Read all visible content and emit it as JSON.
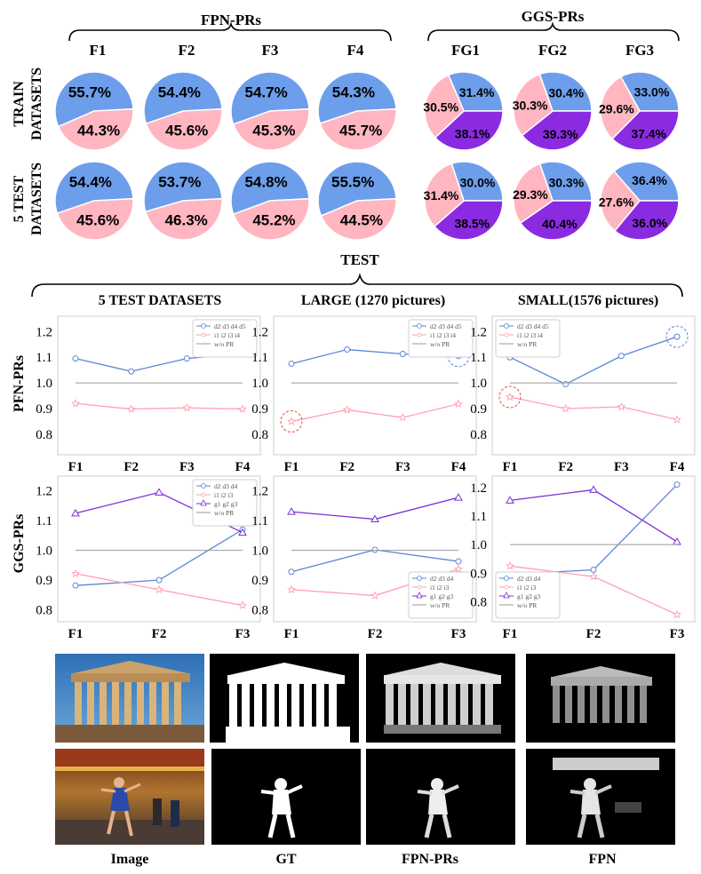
{
  "colors": {
    "blue": "#6d9eeb",
    "pink": "#ffb6c1",
    "purple": "#8a2be2",
    "line_blue": "#5a86d6",
    "line_pink": "#ff9fb0",
    "line_purple": "#7b2fd6",
    "gray": "#999999",
    "highlight": "#e74c3c"
  },
  "top": {
    "fpn_header": "FPN-PRs",
    "ggs_header": "GGS-PRs",
    "fpn_cols": [
      "F1",
      "F2",
      "F3",
      "F4"
    ],
    "ggs_cols": [
      "FG1",
      "FG2",
      "FG3"
    ],
    "row_labels": [
      {
        "line1": "TRAIN",
        "line2": "DATASETS"
      },
      {
        "line1": "5 TEST",
        "line2": "DATASETS"
      }
    ]
  },
  "middle": {
    "test_header": "TEST",
    "col_titles": [
      "5 TEST DATASETS",
      "LARGE (1270 pictures)",
      "SMALL(1576 pictures)"
    ],
    "row_labels": [
      "PFN-PRs",
      "GGS-PRs"
    ]
  },
  "chart_data": [
    {
      "type": "pie",
      "group": "FPN-PRs",
      "row": "TRAIN DATASETS",
      "name": "F1",
      "slices": [
        {
          "label": "55.7%",
          "value": 55.7,
          "color": "blue"
        },
        {
          "label": "44.3%",
          "value": 44.3,
          "color": "pink"
        }
      ]
    },
    {
      "type": "pie",
      "group": "FPN-PRs",
      "row": "TRAIN DATASETS",
      "name": "F2",
      "slices": [
        {
          "label": "54.4%",
          "value": 54.4,
          "color": "blue"
        },
        {
          "label": "45.6%",
          "value": 45.6,
          "color": "pink"
        }
      ]
    },
    {
      "type": "pie",
      "group": "FPN-PRs",
      "row": "TRAIN DATASETS",
      "name": "F3",
      "slices": [
        {
          "label": "54.7%",
          "value": 54.7,
          "color": "blue"
        },
        {
          "label": "45.3%",
          "value": 45.3,
          "color": "pink"
        }
      ]
    },
    {
      "type": "pie",
      "group": "FPN-PRs",
      "row": "TRAIN DATASETS",
      "name": "F4",
      "slices": [
        {
          "label": "54.3%",
          "value": 54.3,
          "color": "blue"
        },
        {
          "label": "45.7%",
          "value": 45.7,
          "color": "pink"
        }
      ]
    },
    {
      "type": "pie",
      "group": "GGS-PRs",
      "row": "TRAIN DATASETS",
      "name": "FG1",
      "slices": [
        {
          "label": "31.4%",
          "value": 31.4,
          "color": "blue"
        },
        {
          "label": "38.1%",
          "value": 38.1,
          "color": "purple"
        },
        {
          "label": "30.5%",
          "value": 30.5,
          "color": "pink"
        }
      ]
    },
    {
      "type": "pie",
      "group": "GGS-PRs",
      "row": "TRAIN DATASETS",
      "name": "FG2",
      "slices": [
        {
          "label": "30.4%",
          "value": 30.4,
          "color": "blue"
        },
        {
          "label": "39.3%",
          "value": 39.3,
          "color": "purple"
        },
        {
          "label": "30.3%",
          "value": 30.3,
          "color": "pink"
        }
      ]
    },
    {
      "type": "pie",
      "group": "GGS-PRs",
      "row": "TRAIN DATASETS",
      "name": "FG3",
      "slices": [
        {
          "label": "33.0%",
          "value": 33.0,
          "color": "blue"
        },
        {
          "label": "37.4%",
          "value": 37.4,
          "color": "purple"
        },
        {
          "label": "29.6%",
          "value": 29.6,
          "color": "pink"
        }
      ]
    },
    {
      "type": "pie",
      "group": "FPN-PRs",
      "row": "5 TEST DATASETS",
      "name": "F1",
      "slices": [
        {
          "label": "54.4%",
          "value": 54.4,
          "color": "blue"
        },
        {
          "label": "45.6%",
          "value": 45.6,
          "color": "pink"
        }
      ]
    },
    {
      "type": "pie",
      "group": "FPN-PRs",
      "row": "5 TEST DATASETS",
      "name": "F2",
      "slices": [
        {
          "label": "53.7%",
          "value": 53.7,
          "color": "blue"
        },
        {
          "label": "46.3%",
          "value": 46.3,
          "color": "pink"
        }
      ]
    },
    {
      "type": "pie",
      "group": "FPN-PRs",
      "row": "5 TEST DATASETS",
      "name": "F3",
      "slices": [
        {
          "label": "54.8%",
          "value": 54.8,
          "color": "blue"
        },
        {
          "label": "45.2%",
          "value": 45.2,
          "color": "pink"
        }
      ]
    },
    {
      "type": "pie",
      "group": "FPN-PRs",
      "row": "5 TEST DATASETS",
      "name": "F4",
      "slices": [
        {
          "label": "55.5%",
          "value": 55.5,
          "color": "blue"
        },
        {
          "label": "44.5%",
          "value": 44.5,
          "color": "pink"
        }
      ]
    },
    {
      "type": "pie",
      "group": "GGS-PRs",
      "row": "5 TEST DATASETS",
      "name": "FG1",
      "slices": [
        {
          "label": "30.0%",
          "value": 30.0,
          "color": "blue"
        },
        {
          "label": "38.5%",
          "value": 38.5,
          "color": "purple"
        },
        {
          "label": "31.4%",
          "value": 31.4,
          "color": "pink"
        }
      ]
    },
    {
      "type": "pie",
      "group": "GGS-PRs",
      "row": "5 TEST DATASETS",
      "name": "FG2",
      "slices": [
        {
          "label": "30.3%",
          "value": 30.3,
          "color": "blue"
        },
        {
          "label": "40.4%",
          "value": 40.4,
          "color": "purple"
        },
        {
          "label": "29.3%",
          "value": 29.3,
          "color": "pink"
        }
      ]
    },
    {
      "type": "pie",
      "group": "GGS-PRs",
      "row": "5 TEST DATASETS",
      "name": "FG3",
      "slices": [
        {
          "label": "36.4%",
          "value": 36.4,
          "color": "blue"
        },
        {
          "label": "36.0%",
          "value": 36.0,
          "color": "purple"
        },
        {
          "label": "27.6%",
          "value": 27.6,
          "color": "pink"
        }
      ]
    },
    {
      "type": "line",
      "row": "PFN-PRs",
      "col": "5 TEST DATASETS",
      "x": [
        "F1",
        "F2",
        "F3",
        "F4"
      ],
      "ylim": [
        0.72,
        1.26
      ],
      "yticks": [
        "0.8",
        "0.9",
        "1.0",
        "1.1",
        "1.2"
      ],
      "legend": "top-right",
      "series": [
        {
          "name": "d2 d3 d4 d5",
          "color": "line_blue",
          "marker": "circle",
          "values": [
            1.095,
            1.045,
            1.095,
            1.115
          ]
        },
        {
          "name": "i1 i2 i3 i4",
          "color": "line_pink",
          "marker": "star",
          "values": [
            0.92,
            0.898,
            0.903,
            0.898
          ]
        },
        {
          "name": "w/o PR",
          "color": "gray",
          "marker": "none",
          "values": [
            1.0,
            1.0,
            1.0,
            1.0
          ]
        }
      ]
    },
    {
      "type": "line",
      "row": "PFN-PRs",
      "col": "LARGE (1270 pictures)",
      "x": [
        "F1",
        "F2",
        "F3",
        "F4"
      ],
      "ylim": [
        0.72,
        1.26
      ],
      "yticks": [
        "0.8",
        "0.9",
        "1.0",
        "1.1",
        "1.2"
      ],
      "legend": "top-right",
      "series": [
        {
          "name": "d2 d3 d4 d5",
          "color": "line_blue",
          "marker": "circle",
          "values": [
            1.075,
            1.13,
            1.113,
            1.105
          ]
        },
        {
          "name": "i1 i2 i3 i4",
          "color": "line_pink",
          "marker": "star",
          "values": [
            0.85,
            0.895,
            0.865,
            0.918
          ]
        },
        {
          "name": "w/o PR",
          "color": "gray",
          "marker": "none",
          "values": [
            1.0,
            1.0,
            1.0,
            1.0
          ]
        }
      ],
      "highlights": [
        {
          "x": "F1",
          "y": 0.85
        },
        {
          "x": "F4",
          "y": 1.105
        }
      ]
    },
    {
      "type": "line",
      "row": "PFN-PRs",
      "col": "SMALL(1576 pictures)",
      "x": [
        "F1",
        "F2",
        "F3",
        "F4"
      ],
      "ylim": [
        0.72,
        1.26
      ],
      "yticks": [
        "0.8",
        "0.9",
        "1.0",
        "1.1",
        "1.2"
      ],
      "legend": "top-left",
      "series": [
        {
          "name": "d2 d3 d4 d5",
          "color": "line_blue",
          "marker": "circle",
          "values": [
            1.1,
            0.995,
            1.105,
            1.18
          ]
        },
        {
          "name": "i1 i2 i3 i4",
          "color": "line_pink",
          "marker": "star",
          "values": [
            0.945,
            0.9,
            0.907,
            0.857
          ]
        },
        {
          "name": "w/o PR",
          "color": "gray",
          "marker": "none",
          "values": [
            1.0,
            1.0,
            1.0,
            1.0
          ]
        }
      ],
      "highlights": [
        {
          "x": "F1",
          "y": 0.945
        },
        {
          "x": "F4",
          "y": 1.18
        }
      ]
    },
    {
      "type": "line",
      "row": "GGS-PRs",
      "col": "5 TEST DATASETS",
      "x": [
        "F1",
        "F2",
        "F3"
      ],
      "ylim": [
        0.76,
        1.25
      ],
      "yticks": [
        "0.8",
        "0.9",
        "1.0",
        "1.1",
        "1.2"
      ],
      "legend": "top-right",
      "series": [
        {
          "name": "d2 d3 d4",
          "color": "line_blue",
          "marker": "circle",
          "values": [
            0.882,
            0.9,
            1.07
          ]
        },
        {
          "name": "i1 i2 i3",
          "color": "line_pink",
          "marker": "star",
          "values": [
            0.922,
            0.868,
            0.815
          ]
        },
        {
          "name": "g1 g2 g3",
          "color": "line_purple",
          "marker": "triangle",
          "values": [
            1.125,
            1.195,
            1.06
          ]
        },
        {
          "name": "w/o PR",
          "color": "gray",
          "marker": "none",
          "values": [
            1.0,
            1.0,
            1.0
          ]
        }
      ]
    },
    {
      "type": "line",
      "row": "GGS-PRs",
      "col": "LARGE (1270 pictures)",
      "x": [
        "F1",
        "F2",
        "F3"
      ],
      "ylim": [
        0.76,
        1.25
      ],
      "yticks": [
        "0.8",
        "0.9",
        "1.0",
        "1.1",
        "1.2"
      ],
      "legend": "bottom-right",
      "series": [
        {
          "name": "d2 d3 d4",
          "color": "line_blue",
          "marker": "circle",
          "values": [
            0.928,
            1.002,
            0.963
          ]
        },
        {
          "name": "i1 i2 i3",
          "color": "line_pink",
          "marker": "star",
          "values": [
            0.868,
            0.848,
            0.937
          ]
        },
        {
          "name": "g1 g2 g3",
          "color": "line_purple",
          "marker": "triangle",
          "values": [
            1.13,
            1.105,
            1.178
          ]
        },
        {
          "name": "w/o PR",
          "color": "gray",
          "marker": "none",
          "values": [
            1.0,
            1.0,
            1.0
          ]
        }
      ]
    },
    {
      "type": "line",
      "row": "GGS-PRs",
      "col": "SMALL(1576 pictures)",
      "x": [
        "F1",
        "F2",
        "F3"
      ],
      "ylim": [
        0.73,
        1.24
      ],
      "yticks": [
        "0.8",
        "0.9",
        "1.0",
        "1.1",
        "1.2"
      ],
      "legend": "bottom-left",
      "series": [
        {
          "name": "d2 d3 d4",
          "color": "line_blue",
          "marker": "circle",
          "values": [
            0.895,
            0.912,
            1.21
          ]
        },
        {
          "name": "i1 i2 i3",
          "color": "line_pink",
          "marker": "star",
          "values": [
            0.925,
            0.888,
            0.755
          ]
        },
        {
          "name": "g1 g2 g3",
          "color": "line_purple",
          "marker": "triangle",
          "values": [
            1.155,
            1.192,
            1.01
          ]
        },
        {
          "name": "w/o PR",
          "color": "gray",
          "marker": "none",
          "values": [
            1.0,
            1.0,
            1.0
          ]
        }
      ]
    }
  ],
  "bottom": {
    "captions": [
      "Image",
      "GT",
      "FPN-PRs",
      "FPN"
    ]
  }
}
